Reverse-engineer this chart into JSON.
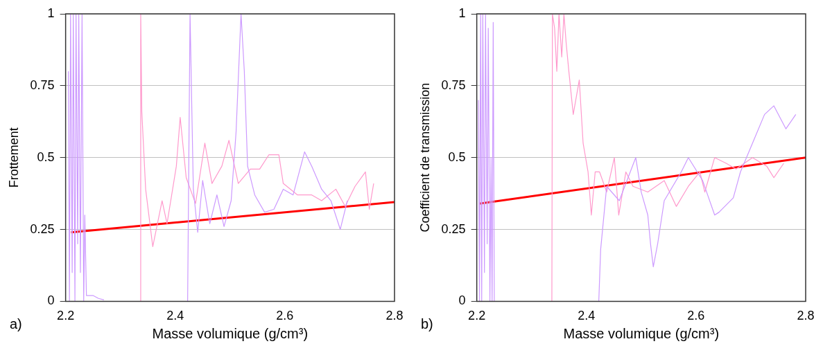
{
  "chart_data": [
    {
      "type": "line",
      "ylabel": "Frottement",
      "xlabel": "Masse volumique (g/cm³)",
      "xlim": [
        2.2,
        2.8
      ],
      "xticks": [
        2.2,
        2.4,
        2.6,
        2.8
      ],
      "ylim": [
        0,
        1
      ],
      "yticks": [
        0,
        0.25,
        0.5,
        0.75,
        1
      ],
      "grid": "y",
      "legend": false,
      "marker": "none",
      "line_style": "solid",
      "annotations": [
        "a)"
      ],
      "series": [
        {
          "color": "#cc99ff",
          "x": [
            2.205,
            2.207,
            2.209,
            2.212,
            2.214,
            2.217,
            2.219,
            2.222,
            2.224,
            2.227,
            2.23,
            2.233,
            2.235,
            2.238,
            2.25,
            2.26,
            2.27,
            2.35,
            2.4226,
            2.427,
            2.433,
            2.441,
            2.45,
            2.463,
            2.476,
            2.489,
            2.502,
            2.511,
            2.52,
            2.526,
            2.532,
            2.545,
            2.563,
            2.58,
            2.597,
            2.615,
            2.636,
            2.649,
            2.667,
            2.684,
            2.701,
            2.714
          ],
          "values": [
            0.8,
            0,
            1,
            0.1,
            1,
            0,
            1,
            0.2,
            1,
            0.1,
            1,
            0,
            0.3,
            0.02,
            0.02,
            0.01,
            0.005,
            null,
            0,
            1,
            0.39,
            0.24,
            0.42,
            0.27,
            0.37,
            0.26,
            0.35,
            0.59,
            1,
            0.8,
            0.47,
            0.37,
            0.31,
            0.32,
            0.39,
            0.37,
            0.52,
            0.47,
            0.39,
            0.35,
            0.25,
            0.35
          ]
        },
        {
          "color": "#ff99cc",
          "x": [
            2.336,
            2.337,
            2.339,
            2.346,
            2.359,
            2.376,
            2.385,
            2.402,
            2.409,
            2.42,
            2.437,
            2.454,
            2.467,
            2.485,
            2.498,
            2.515,
            2.537,
            2.554,
            2.571,
            2.589,
            2.597,
            2.623,
            2.649,
            2.667,
            2.693,
            2.71,
            2.728,
            2.747,
            2.754,
            2.762
          ],
          "values": [
            0,
            1,
            0.66,
            0.39,
            0.19,
            0.35,
            0.27,
            0.47,
            0.64,
            0.43,
            0.34,
            0.55,
            0.41,
            0.47,
            0.56,
            0.41,
            0.46,
            0.46,
            0.51,
            0.51,
            0.41,
            0.37,
            0.37,
            0.35,
            0.39,
            0.33,
            0.4,
            0.45,
            0.32,
            0.41
          ]
        },
        {
          "color": "#ff0000",
          "x": [
            2.21,
            2.8
          ],
          "values": [
            0.24,
            0.345
          ]
        }
      ]
    },
    {
      "type": "line",
      "ylabel": "Coefficient de transmission",
      "xlabel": "Masse volumique (g/cm³)",
      "xlim": [
        2.2,
        2.8
      ],
      "xticks": [
        2.2,
        2.4,
        2.6,
        2.8
      ],
      "ylim": [
        0,
        1
      ],
      "yticks": [
        0,
        0.25,
        0.5,
        0.75,
        1
      ],
      "grid": "y",
      "legend": false,
      "marker": "none",
      "line_style": "solid",
      "annotations": [
        "b)"
      ],
      "series": [
        {
          "color": "#cc99ff",
          "x": [
            2.203,
            2.205,
            2.207,
            2.209,
            2.211,
            2.214,
            2.216,
            2.219,
            2.221,
            2.224,
            2.226,
            2.228,
            2.23,
            2.232,
            2.33,
            2.4226,
            2.426,
            2.437,
            2.46,
            2.49,
            2.5,
            2.512,
            2.517,
            2.522,
            2.53,
            2.542,
            2.573,
            2.586,
            2.612,
            2.634,
            2.642,
            2.668,
            2.681,
            2.703,
            2.725,
            2.742,
            2.764,
            2.782
          ],
          "values": [
            0.7,
            0,
            1,
            0,
            1,
            0.1,
            1,
            0.2,
            0.95,
            0,
            0.5,
            0,
            0.97,
            0,
            null,
            0,
            0.18,
            0.4,
            0.35,
            0.5,
            0.38,
            0.3,
            0.2,
            0.12,
            0.2,
            0.35,
            0.45,
            0.5,
            0.42,
            0.3,
            0.31,
            0.36,
            0.45,
            0.55,
            0.65,
            0.68,
            0.6,
            0.65
          ]
        },
        {
          "color": "#ff99cc",
          "x": [
            2.337,
            2.338,
            2.342,
            2.346,
            2.35,
            2.355,
            2.359,
            2.363,
            2.368,
            2.376,
            2.387,
            2.394,
            2.403,
            2.409,
            2.416,
            2.424,
            2.437,
            2.451,
            2.459,
            2.472,
            2.485,
            2.512,
            2.542,
            2.564,
            2.586,
            2.607,
            2.616,
            2.634,
            2.655,
            2.673,
            2.703,
            2.729,
            2.742,
            2.76
          ],
          "values": [
            0,
            1,
            0.95,
            0.8,
            1,
            0.85,
            1,
            0.9,
            0.8,
            0.65,
            0.77,
            0.55,
            0.45,
            0.3,
            0.45,
            0.45,
            0.38,
            0.5,
            0.3,
            0.45,
            0.4,
            0.38,
            0.42,
            0.33,
            0.4,
            0.45,
            0.38,
            0.5,
            0.48,
            0.46,
            0.5,
            0.47,
            0.43,
            0.48
          ]
        },
        {
          "color": "#ff0000",
          "x": [
            2.205,
            2.8
          ],
          "values": [
            0.34,
            0.5
          ]
        }
      ]
    }
  ]
}
